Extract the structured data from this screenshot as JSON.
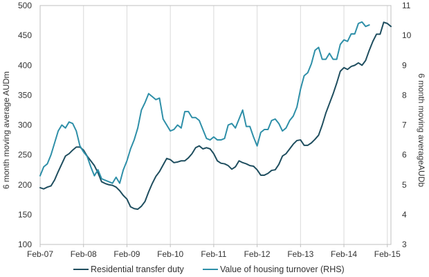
{
  "chart_data": {
    "type": "line",
    "title": "",
    "ylabel": "6 month moving average AUDm",
    "y2label": "6 month moving averageAUDb",
    "ylim": [
      100,
      500
    ],
    "y2lim": [
      3,
      11
    ],
    "yticks": [
      100,
      150,
      200,
      250,
      300,
      350,
      400,
      450,
      500
    ],
    "y2ticks": [
      3,
      4,
      5,
      6,
      7,
      8,
      9,
      10,
      11
    ],
    "xlim": [
      "Feb-07",
      "Mar-15"
    ],
    "xtick_labels": [
      "Feb-07",
      "Feb-08",
      "Feb-09",
      "Feb-10",
      "Feb-11",
      "Feb-12",
      "Feb-13",
      "Feb-14",
      "Feb-15"
    ],
    "grid": "vertical",
    "legend_position": "bottom",
    "series": [
      {
        "name": "Residential transfer duty",
        "axis": "left",
        "color": "#1f4e5f",
        "points": [
          [
            "2007-02",
            195
          ],
          [
            "2007-03",
            193
          ],
          [
            "2007-04",
            196
          ],
          [
            "2007-05",
            198
          ],
          [
            "2007-06",
            208
          ],
          [
            "2007-07",
            222
          ],
          [
            "2007-08",
            235
          ],
          [
            "2007-09",
            248
          ],
          [
            "2007-10",
            252
          ],
          [
            "2007-11",
            258
          ],
          [
            "2007-12",
            263
          ],
          [
            "2008-01",
            263
          ],
          [
            "2008-02",
            258
          ],
          [
            "2008-03",
            248
          ],
          [
            "2008-04",
            240
          ],
          [
            "2008-05",
            232
          ],
          [
            "2008-06",
            220
          ],
          [
            "2008-07",
            205
          ],
          [
            "2008-08",
            202
          ],
          [
            "2008-09",
            200
          ],
          [
            "2008-10",
            199
          ],
          [
            "2008-11",
            196
          ],
          [
            "2008-12",
            190
          ],
          [
            "2009-01",
            182
          ],
          [
            "2009-02",
            176
          ],
          [
            "2009-03",
            163
          ],
          [
            "2009-04",
            160
          ],
          [
            "2009-05",
            159
          ],
          [
            "2009-06",
            164
          ],
          [
            "2009-07",
            172
          ],
          [
            "2009-08",
            188
          ],
          [
            "2009-09",
            202
          ],
          [
            "2009-10",
            214
          ],
          [
            "2009-11",
            222
          ],
          [
            "2009-12",
            233
          ],
          [
            "2010-01",
            244
          ],
          [
            "2010-02",
            242
          ],
          [
            "2010-03",
            237
          ],
          [
            "2010-04",
            238
          ],
          [
            "2010-05",
            240
          ],
          [
            "2010-06",
            240
          ],
          [
            "2010-07",
            245
          ],
          [
            "2010-08",
            252
          ],
          [
            "2010-09",
            262
          ],
          [
            "2010-10",
            265
          ],
          [
            "2010-11",
            260
          ],
          [
            "2010-12",
            262
          ],
          [
            "2011-01",
            260
          ],
          [
            "2011-02",
            252
          ],
          [
            "2011-03",
            240
          ],
          [
            "2011-04",
            236
          ],
          [
            "2011-05",
            235
          ],
          [
            "2011-06",
            232
          ],
          [
            "2011-07",
            226
          ],
          [
            "2011-08",
            230
          ],
          [
            "2011-09",
            240
          ],
          [
            "2011-10",
            237
          ],
          [
            "2011-11",
            235
          ],
          [
            "2011-12",
            232
          ],
          [
            "2012-01",
            231
          ],
          [
            "2012-02",
            225
          ],
          [
            "2012-03",
            216
          ],
          [
            "2012-04",
            216
          ],
          [
            "2012-05",
            219
          ],
          [
            "2012-06",
            224
          ],
          [
            "2012-07",
            225
          ],
          [
            "2012-08",
            234
          ],
          [
            "2012-09",
            248
          ],
          [
            "2012-10",
            252
          ],
          [
            "2012-11",
            260
          ],
          [
            "2012-12",
            268
          ],
          [
            "2013-01",
            274
          ],
          [
            "2013-02",
            275
          ],
          [
            "2013-03",
            266
          ],
          [
            "2013-04",
            266
          ],
          [
            "2013-05",
            270
          ],
          [
            "2013-06",
            276
          ],
          [
            "2013-07",
            283
          ],
          [
            "2013-08",
            300
          ],
          [
            "2013-09",
            320
          ],
          [
            "2013-10",
            336
          ],
          [
            "2013-11",
            352
          ],
          [
            "2013-12",
            370
          ],
          [
            "2014-01",
            390
          ],
          [
            "2014-02",
            396
          ],
          [
            "2014-03",
            393
          ],
          [
            "2014-04",
            398
          ],
          [
            "2014-05",
            400
          ],
          [
            "2014-06",
            404
          ],
          [
            "2014-07",
            400
          ],
          [
            "2014-08",
            408
          ],
          [
            "2014-09",
            425
          ],
          [
            "2014-10",
            440
          ],
          [
            "2014-11",
            452
          ],
          [
            "2014-12",
            452
          ],
          [
            "2015-01",
            472
          ],
          [
            "2015-02",
            470
          ],
          [
            "2015-03",
            465
          ]
        ]
      },
      {
        "name": "Value of housing turnover (RHS)",
        "axis": "right",
        "color": "#2e8fa8",
        "points": [
          [
            "2007-02",
            5.3
          ],
          [
            "2007-03",
            5.6
          ],
          [
            "2007-04",
            5.7
          ],
          [
            "2007-05",
            6.0
          ],
          [
            "2007-06",
            6.4
          ],
          [
            "2007-07",
            6.8
          ],
          [
            "2007-08",
            7.0
          ],
          [
            "2007-09",
            6.9
          ],
          [
            "2007-10",
            7.1
          ],
          [
            "2007-11",
            7.05
          ],
          [
            "2007-12",
            6.8
          ],
          [
            "2008-01",
            6.3
          ],
          [
            "2008-02",
            6.1
          ],
          [
            "2008-03",
            5.95
          ],
          [
            "2008-04",
            5.6
          ],
          [
            "2008-05",
            5.3
          ],
          [
            "2008-06",
            5.5
          ],
          [
            "2008-07",
            5.2
          ],
          [
            "2008-08",
            5.15
          ],
          [
            "2008-09",
            5.1
          ],
          [
            "2008-10",
            5.05
          ],
          [
            "2008-11",
            5.25
          ],
          [
            "2008-12",
            5.05
          ],
          [
            "2009-01",
            5.5
          ],
          [
            "2009-02",
            5.8
          ],
          [
            "2009-03",
            6.2
          ],
          [
            "2009-04",
            6.5
          ],
          [
            "2009-05",
            6.9
          ],
          [
            "2009-06",
            7.5
          ],
          [
            "2009-07",
            7.75
          ],
          [
            "2009-08",
            8.05
          ],
          [
            "2009-09",
            7.95
          ],
          [
            "2009-10",
            7.85
          ],
          [
            "2009-11",
            7.9
          ],
          [
            "2009-12",
            7.2
          ],
          [
            "2010-01",
            7.0
          ],
          [
            "2010-02",
            6.8
          ],
          [
            "2010-03",
            6.85
          ],
          [
            "2010-04",
            7.0
          ],
          [
            "2010-05",
            6.9
          ],
          [
            "2010-06",
            7.45
          ],
          [
            "2010-07",
            7.45
          ],
          [
            "2010-08",
            7.25
          ],
          [
            "2010-09",
            7.25
          ],
          [
            "2010-10",
            7.15
          ],
          [
            "2010-11",
            6.85
          ],
          [
            "2010-12",
            6.55
          ],
          [
            "2011-01",
            6.5
          ],
          [
            "2011-02",
            6.6
          ],
          [
            "2011-03",
            6.5
          ],
          [
            "2011-04",
            6.5
          ],
          [
            "2011-05",
            6.55
          ],
          [
            "2011-06",
            7.0
          ],
          [
            "2011-07",
            7.05
          ],
          [
            "2011-08",
            6.9
          ],
          [
            "2011-09",
            7.2
          ],
          [
            "2011-10",
            7.5
          ],
          [
            "2011-11",
            6.95
          ],
          [
            "2011-12",
            6.95
          ],
          [
            "2012-01",
            6.6
          ],
          [
            "2012-02",
            6.3
          ],
          [
            "2012-03",
            6.75
          ],
          [
            "2012-04",
            6.85
          ],
          [
            "2012-05",
            6.85
          ],
          [
            "2012-06",
            7.15
          ],
          [
            "2012-07",
            7.2
          ],
          [
            "2012-08",
            7.05
          ],
          [
            "2012-09",
            6.8
          ],
          [
            "2012-10",
            6.9
          ],
          [
            "2012-11",
            7.15
          ],
          [
            "2012-12",
            7.3
          ],
          [
            "2013-01",
            7.6
          ],
          [
            "2013-02",
            8.2
          ],
          [
            "2013-03",
            8.65
          ],
          [
            "2013-04",
            8.75
          ],
          [
            "2013-05",
            9.05
          ],
          [
            "2013-06",
            9.5
          ],
          [
            "2013-07",
            9.6
          ],
          [
            "2013-08",
            9.2
          ],
          [
            "2013-09",
            9.2
          ],
          [
            "2013-10",
            9.4
          ],
          [
            "2013-11",
            9.2
          ],
          [
            "2013-12",
            9.2
          ],
          [
            "2014-01",
            9.7
          ],
          [
            "2014-02",
            9.85
          ],
          [
            "2014-03",
            9.8
          ],
          [
            "2014-04",
            10.05
          ],
          [
            "2014-05",
            10.05
          ],
          [
            "2014-06",
            10.4
          ],
          [
            "2014-07",
            10.45
          ],
          [
            "2014-08",
            10.3
          ],
          [
            "2014-09",
            10.35
          ]
        ]
      }
    ]
  }
}
